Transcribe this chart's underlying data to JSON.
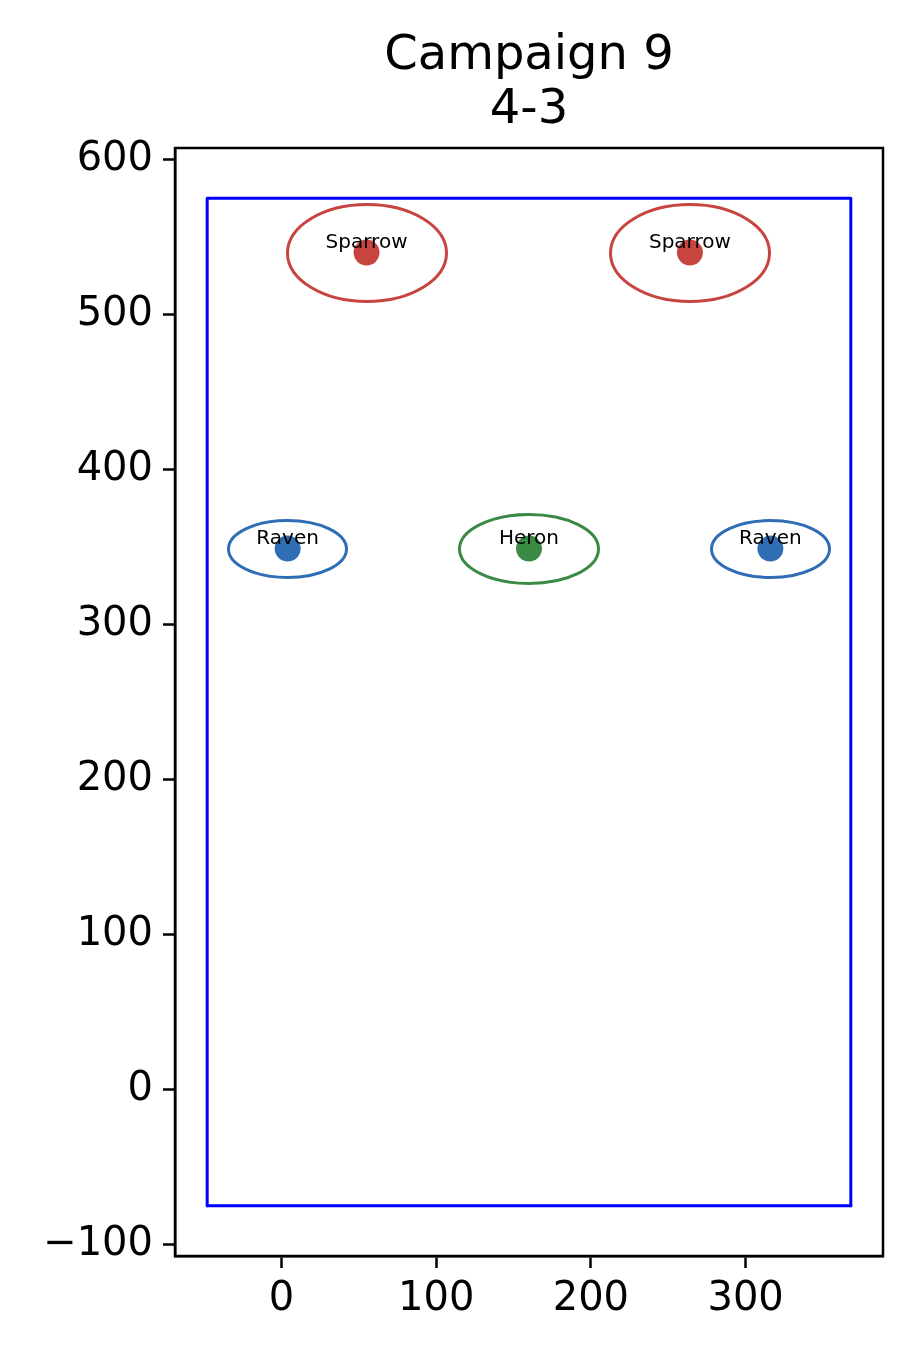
{
  "chart_data": {
    "type": "scatter",
    "title": "Campaign 9",
    "subtitle": "4-3",
    "xlim": [
      -68.8,
      388.8
    ],
    "xticks": [
      0,
      100,
      200,
      300
    ],
    "ylim": [
      -107.5,
      607.5
    ],
    "yticks": [
      {
        "value": -100,
        "label": "−100"
      },
      0,
      100,
      200,
      300,
      400,
      500,
      600
    ],
    "series": [
      {
        "type": "line",
        "color": "#0000ff",
        "marker": "none",
        "x": [
          -48,
          -48,
          368,
          368
        ],
        "values": [
          -75,
          575,
          575,
          -75
        ]
      },
      {
        "type": "line",
        "color": "#0000ff",
        "marker": "none",
        "x": [
          -48,
          368
        ],
        "values": [
          -75,
          -75
        ]
      },
      {
        "type": "scatter",
        "name": "Sparrow",
        "color": "#c8443f",
        "marker": "circle",
        "x": [
          55,
          264
        ],
        "values": [
          540,
          540
        ]
      },
      {
        "type": "scatter",
        "name": "Raven",
        "color": "#2f6db5",
        "marker": "circle",
        "x": [
          4,
          316
        ],
        "values": [
          349,
          349
        ]
      },
      {
        "type": "scatter",
        "name": "Heron",
        "color": "#3a8a45",
        "marker": "circle",
        "x": [
          160
        ],
        "values": [
          349
        ]
      }
    ]
  }
}
